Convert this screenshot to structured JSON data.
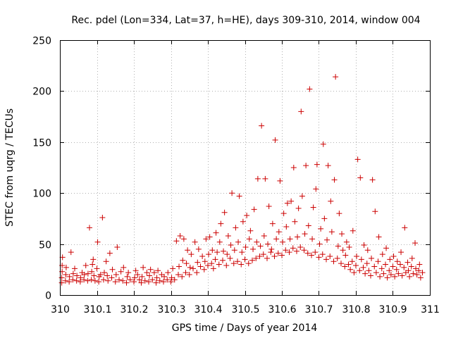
{
  "chart_data": {
    "type": "scatter",
    "title": "Rec. pdel (Lon=334, Lat=37, h=HE), days 309-310, 2014, window 004",
    "xlabel": "GPS time / Days of year 2014",
    "ylabel": "STEC from uqrg / TECUs",
    "xlim": [
      310,
      311
    ],
    "ylim": [
      0,
      250
    ],
    "xticks": [
      "310",
      "310.1",
      "310.2",
      "310.3",
      "310.4",
      "310.5",
      "310.6",
      "310.7",
      "310.8",
      "310.9",
      "311"
    ],
    "yticks": [
      "0",
      "50",
      "100",
      "150",
      "200",
      "250"
    ],
    "grid": true,
    "marker": "plus",
    "color": "#cc0000",
    "points": [
      [
        310.005,
        12
      ],
      [
        310.005,
        17
      ],
      [
        310.006,
        23
      ],
      [
        310.006,
        29
      ],
      [
        310.007,
        37
      ],
      [
        310.015,
        14
      ],
      [
        310.016,
        20
      ],
      [
        310.017,
        27
      ],
      [
        310.025,
        13
      ],
      [
        310.026,
        18
      ],
      [
        310.03,
        42
      ],
      [
        310.035,
        15
      ],
      [
        310.036,
        21
      ],
      [
        310.04,
        26
      ],
      [
        310.045,
        14
      ],
      [
        310.046,
        19
      ],
      [
        310.055,
        13
      ],
      [
        310.056,
        17
      ],
      [
        310.06,
        22
      ],
      [
        310.065,
        15
      ],
      [
        310.066,
        20
      ],
      [
        310.07,
        29
      ],
      [
        310.075,
        14
      ],
      [
        310.076,
        21
      ],
      [
        310.08,
        66
      ],
      [
        310.085,
        15
      ],
      [
        310.086,
        23
      ],
      [
        310.088,
        30
      ],
      [
        310.09,
        35
      ],
      [
        310.092,
        19
      ],
      [
        310.095,
        14
      ],
      [
        310.1,
        26
      ],
      [
        310.102,
        52
      ],
      [
        310.105,
        13
      ],
      [
        310.106,
        18
      ],
      [
        310.11,
        20
      ],
      [
        310.115,
        76
      ],
      [
        310.118,
        15
      ],
      [
        310.12,
        22
      ],
      [
        310.125,
        33
      ],
      [
        310.128,
        19
      ],
      [
        310.13,
        14
      ],
      [
        310.135,
        41
      ],
      [
        310.14,
        17
      ],
      [
        310.142,
        25
      ],
      [
        310.15,
        13
      ],
      [
        310.152,
        20
      ],
      [
        310.155,
        47
      ],
      [
        310.16,
        15
      ],
      [
        310.165,
        23
      ],
      [
        310.17,
        14
      ],
      [
        310.172,
        27
      ],
      [
        310.18,
        12
      ],
      [
        310.182,
        18
      ],
      [
        310.185,
        22
      ],
      [
        310.19,
        15
      ],
      [
        310.2,
        13
      ],
      [
        310.202,
        17
      ],
      [
        310.205,
        24
      ],
      [
        310.21,
        20
      ],
      [
        310.215,
        15
      ],
      [
        310.22,
        12
      ],
      [
        310.222,
        18
      ],
      [
        310.225,
        27
      ],
      [
        310.23,
        14
      ],
      [
        310.235,
        22
      ],
      [
        310.24,
        13
      ],
      [
        310.242,
        19
      ],
      [
        310.245,
        25
      ],
      [
        310.25,
        15
      ],
      [
        310.255,
        22
      ],
      [
        310.26,
        12
      ],
      [
        310.262,
        17
      ],
      [
        310.265,
        24
      ],
      [
        310.27,
        14
      ],
      [
        310.275,
        20
      ],
      [
        310.28,
        13
      ],
      [
        310.282,
        18
      ],
      [
        310.29,
        15
      ],
      [
        310.292,
        22
      ],
      [
        310.3,
        13
      ],
      [
        310.302,
        17
      ],
      [
        310.305,
        26
      ],
      [
        310.31,
        15
      ],
      [
        310.315,
        53
      ],
      [
        310.32,
        20
      ],
      [
        310.322,
        28
      ],
      [
        310.325,
        58
      ],
      [
        310.33,
        18
      ],
      [
        310.332,
        34
      ],
      [
        310.335,
        55
      ],
      [
        310.34,
        22
      ],
      [
        310.342,
        31
      ],
      [
        310.345,
        44
      ],
      [
        310.35,
        20
      ],
      [
        310.352,
        27
      ],
      [
        310.355,
        40
      ],
      [
        310.36,
        26
      ],
      [
        310.365,
        52
      ],
      [
        310.37,
        22
      ],
      [
        310.372,
        32
      ],
      [
        310.375,
        45
      ],
      [
        310.38,
        28
      ],
      [
        310.385,
        38
      ],
      [
        310.39,
        25
      ],
      [
        310.392,
        33
      ],
      [
        310.395,
        55
      ],
      [
        310.4,
        29
      ],
      [
        310.402,
        40
      ],
      [
        310.405,
        57
      ],
      [
        310.41,
        31
      ],
      [
        310.412,
        44
      ],
      [
        310.415,
        26
      ],
      [
        310.42,
        35
      ],
      [
        310.422,
        61
      ],
      [
        310.425,
        42
      ],
      [
        310.43,
        30
      ],
      [
        310.432,
        52
      ],
      [
        310.435,
        70
      ],
      [
        310.44,
        34
      ],
      [
        310.442,
        43
      ],
      [
        310.445,
        81
      ],
      [
        310.45,
        29
      ],
      [
        310.452,
        40
      ],
      [
        310.455,
        58
      ],
      [
        310.46,
        36
      ],
      [
        310.462,
        49
      ],
      [
        310.465,
        100
      ],
      [
        310.47,
        31
      ],
      [
        310.472,
        44
      ],
      [
        310.475,
        66
      ],
      [
        310.48,
        33
      ],
      [
        310.482,
        52
      ],
      [
        310.485,
        97
      ],
      [
        310.49,
        30
      ],
      [
        310.492,
        42
      ],
      [
        310.495,
        72
      ],
      [
        310.5,
        35
      ],
      [
        310.502,
        47
      ],
      [
        310.505,
        78
      ],
      [
        310.51,
        31
      ],
      [
        310.512,
        55
      ],
      [
        310.515,
        63
      ],
      [
        310.52,
        34
      ],
      [
        310.522,
        45
      ],
      [
        310.525,
        84
      ],
      [
        310.53,
        36
      ],
      [
        310.532,
        52
      ],
      [
        310.535,
        114
      ],
      [
        310.54,
        38
      ],
      [
        310.542,
        48
      ],
      [
        310.545,
        166
      ],
      [
        310.55,
        40
      ],
      [
        310.552,
        58
      ],
      [
        310.555,
        114
      ],
      [
        310.56,
        36
      ],
      [
        310.562,
        50
      ],
      [
        310.565,
        87
      ],
      [
        310.57,
        42
      ],
      [
        310.572,
        45
      ],
      [
        310.575,
        70
      ],
      [
        310.58,
        38
      ],
      [
        310.582,
        152
      ],
      [
        310.585,
        55
      ],
      [
        310.59,
        41
      ],
      [
        310.592,
        62
      ],
      [
        310.595,
        112
      ],
      [
        310.6,
        39
      ],
      [
        310.602,
        52
      ],
      [
        310.605,
        80
      ],
      [
        310.61,
        44
      ],
      [
        310.612,
        67
      ],
      [
        310.615,
        90
      ],
      [
        310.62,
        42
      ],
      [
        310.622,
        55
      ],
      [
        310.625,
        92
      ],
      [
        310.63,
        46
      ],
      [
        310.632,
        125
      ],
      [
        310.635,
        72
      ],
      [
        310.64,
        43
      ],
      [
        310.642,
        57
      ],
      [
        310.645,
        85
      ],
      [
        310.65,
        47
      ],
      [
        310.652,
        180
      ],
      [
        310.655,
        97
      ],
      [
        310.66,
        44
      ],
      [
        310.662,
        60
      ],
      [
        310.665,
        127
      ],
      [
        310.67,
        41
      ],
      [
        310.672,
        68
      ],
      [
        310.675,
        202
      ],
      [
        310.68,
        39
      ],
      [
        310.682,
        55
      ],
      [
        310.685,
        86
      ],
      [
        310.69,
        42
      ],
      [
        310.692,
        104
      ],
      [
        310.695,
        128
      ],
      [
        310.7,
        37
      ],
      [
        310.702,
        50
      ],
      [
        310.705,
        65
      ],
      [
        310.71,
        40
      ],
      [
        310.712,
        148
      ],
      [
        310.715,
        75
      ],
      [
        310.72,
        35
      ],
      [
        310.722,
        54
      ],
      [
        310.725,
        127
      ],
      [
        310.73,
        38
      ],
      [
        310.732,
        92
      ],
      [
        310.735,
        62
      ],
      [
        310.74,
        33
      ],
      [
        310.742,
        113
      ],
      [
        310.745,
        214
      ],
      [
        310.75,
        36
      ],
      [
        310.752,
        48
      ],
      [
        310.755,
        80
      ],
      [
        310.76,
        31
      ],
      [
        310.762,
        60
      ],
      [
        310.765,
        44
      ],
      [
        310.77,
        28
      ],
      [
        310.772,
        39
      ],
      [
        310.775,
        52
      ],
      [
        310.78,
        30
      ],
      [
        310.782,
        47
      ],
      [
        310.785,
        25
      ],
      [
        310.79,
        33
      ],
      [
        310.792,
        63
      ],
      [
        310.795,
        22
      ],
      [
        310.8,
        29
      ],
      [
        310.802,
        38
      ],
      [
        310.805,
        133
      ],
      [
        310.81,
        24
      ],
      [
        310.812,
        115
      ],
      [
        310.815,
        35
      ],
      [
        310.82,
        27
      ],
      [
        310.822,
        49
      ],
      [
        310.825,
        21
      ],
      [
        310.83,
        31
      ],
      [
        310.832,
        44
      ],
      [
        310.835,
        24
      ],
      [
        310.84,
        19
      ],
      [
        310.842,
        36
      ],
      [
        310.845,
        113
      ],
      [
        310.85,
        28
      ],
      [
        310.852,
        82
      ],
      [
        310.855,
        22
      ],
      [
        310.86,
        33
      ],
      [
        310.862,
        57
      ],
      [
        310.865,
        18
      ],
      [
        310.87,
        26
      ],
      [
        310.872,
        40
      ],
      [
        310.875,
        21
      ],
      [
        310.88,
        30
      ],
      [
        310.882,
        46
      ],
      [
        310.885,
        17
      ],
      [
        310.89,
        24
      ],
      [
        310.892,
        35
      ],
      [
        310.895,
        20
      ],
      [
        310.9,
        28
      ],
      [
        310.902,
        38
      ],
      [
        310.905,
        18
      ],
      [
        310.91,
        25
      ],
      [
        310.912,
        33
      ],
      [
        310.915,
        21
      ],
      [
        310.92,
        30
      ],
      [
        310.922,
        42
      ],
      [
        310.925,
        19
      ],
      [
        310.93,
        27
      ],
      [
        310.932,
        66
      ],
      [
        310.935,
        22
      ],
      [
        310.94,
        32
      ],
      [
        310.942,
        24
      ],
      [
        310.945,
        18
      ],
      [
        310.95,
        28
      ],
      [
        310.952,
        36
      ],
      [
        310.955,
        21
      ],
      [
        310.96,
        51
      ],
      [
        310.962,
        26
      ],
      [
        310.965,
        20
      ],
      [
        310.97,
        24
      ],
      [
        310.972,
        30
      ],
      [
        310.975,
        17
      ],
      [
        310.98,
        22
      ]
    ]
  }
}
